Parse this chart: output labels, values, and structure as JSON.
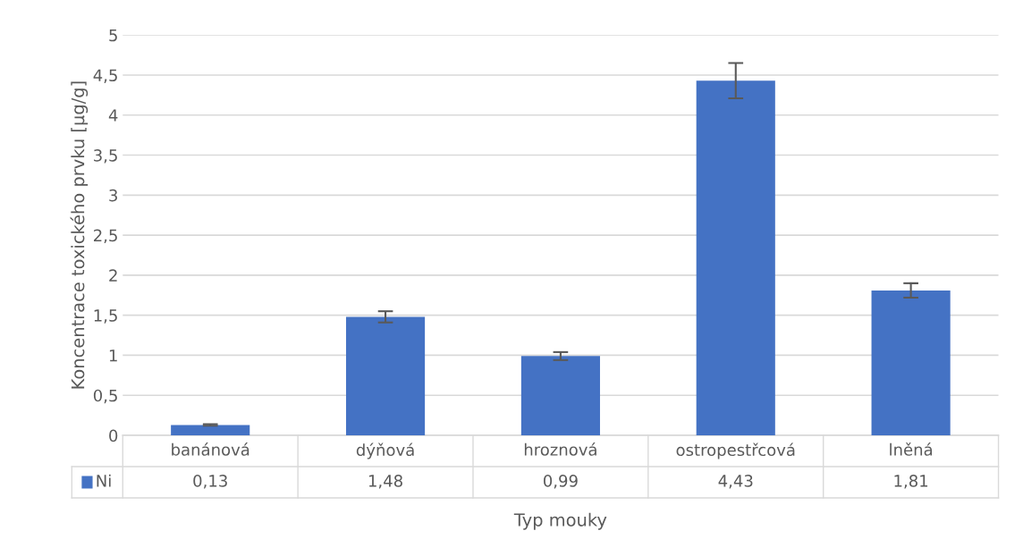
{
  "chart_data": {
    "type": "bar",
    "xlabel": "Typ mouky",
    "ylabel": "Koncentrace toxického prvku [µg/g]",
    "categories": [
      "banánová",
      "dýňová",
      "hroznová",
      "ostropestřcová",
      "lněná"
    ],
    "series": [
      {
        "name": "Ni",
        "color": "#4472c4",
        "values": [
          0.13,
          1.48,
          0.99,
          4.43,
          1.81
        ],
        "errors": [
          0.01,
          0.07,
          0.05,
          0.22,
          0.09
        ],
        "value_labels": [
          "0,13",
          "1,48",
          "0,99",
          "4,43",
          "1,81"
        ]
      }
    ],
    "ylim": [
      0,
      5
    ],
    "yticks": [
      0,
      {
        "value": 0.5,
        "label": "0,5"
      },
      1,
      {
        "value": 1.5,
        "label": "1,5"
      },
      2,
      {
        "value": 2.5,
        "label": "2,5"
      },
      3,
      {
        "value": 3.5,
        "label": "3,5"
      },
      4,
      {
        "value": 4.5,
        "label": "4,5"
      },
      5
    ],
    "grid": "y"
  }
}
